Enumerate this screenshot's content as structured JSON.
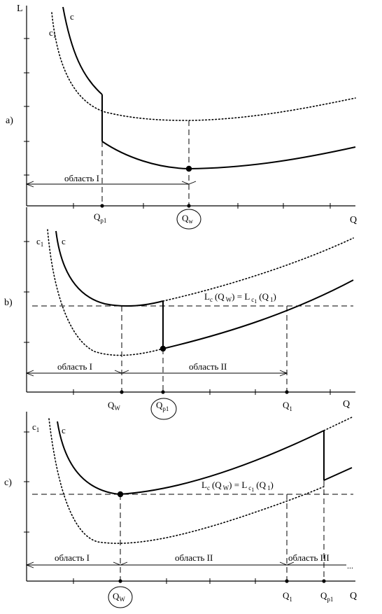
{
  "axis_labels": {
    "y": "L",
    "x": "Q"
  },
  "panels": {
    "a": {
      "label": "a)",
      "curve_c": "c",
      "curve_c1": "c",
      "curve_c1_sub": "1",
      "q_p": "Q",
      "q_p_sub": "p1",
      "q_w": "Q",
      "q_w_sub": "w",
      "region1": "область  I"
    },
    "b": {
      "label": "b)",
      "curve_c": "c",
      "curve_c1": "c",
      "curve_c1_sub": "1",
      "q_w": "Q",
      "q_w_sub": "W",
      "q_p": "Q",
      "q_p_sub": "p1",
      "q_1": "Q",
      "q_1_sub": "1",
      "x_axis": "Q",
      "region1": "область I",
      "region2": "область  II",
      "equation": {
        "l1": "L",
        "s1": "c",
        "p1": "(Q",
        "s2": "W",
        "p2": ") = L",
        "s3": "c",
        "s3b": "1",
        "p3": "(Q",
        "s4": "1",
        "p4": ")"
      }
    },
    "c": {
      "label": "c)",
      "curve_c": "c",
      "curve_c1": "c",
      "curve_c1_sub": "1",
      "q_w": "Q",
      "q_w_sub": "W",
      "q_1": "Q",
      "q_1_sub": "1",
      "q_p": "Q",
      "q_p_sub": "p1",
      "x_axis": "Q",
      "region1": "область I",
      "region2": "область  II",
      "region3": "область  III",
      "ellipsis": "...",
      "equation": {
        "l1": "L",
        "s1": "c",
        "p1": "(Q",
        "s2": "W",
        "p2": ") = L",
        "s3": "c",
        "s3b": "1",
        "p3": "(Q",
        "s4": "1",
        "p4": ")"
      }
    }
  }
}
